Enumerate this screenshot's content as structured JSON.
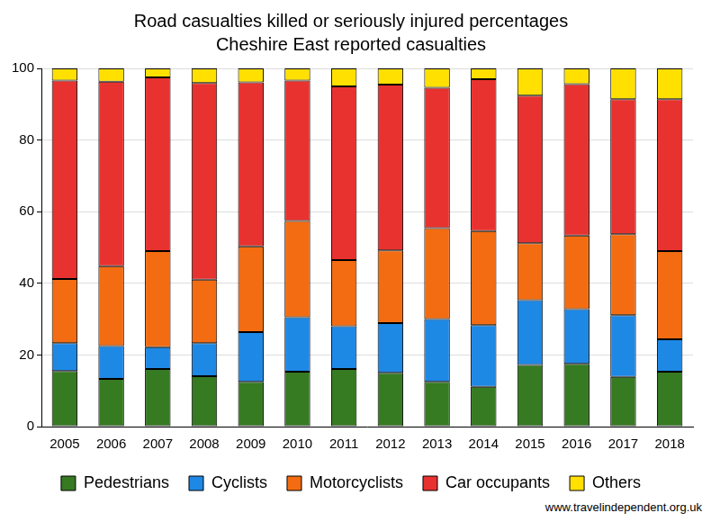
{
  "chart_data": {
    "type": "bar",
    "title": "Road casualties killed or seriously injured percentages",
    "subtitle": "Cheshire East reported casualties",
    "source": "www.travelindependent.org.uk",
    "categories": [
      "2005",
      "2006",
      "2007",
      "2008",
      "2009",
      "2010",
      "2011",
      "2012",
      "2013",
      "2014",
      "2015",
      "2016",
      "2017",
      "2018"
    ],
    "series": [
      {
        "name": "Pedestrians",
        "color": "#367a22",
        "values": [
          15.5,
          13.3,
          16.1,
          14.1,
          12.5,
          15.3,
          16.1,
          15.0,
          12.5,
          11.1,
          17.2,
          17.5,
          13.9,
          15.3
        ]
      },
      {
        "name": "Cyclists",
        "color": "#1e88e5",
        "values": [
          7.8,
          9.2,
          6.1,
          9.2,
          13.9,
          15.2,
          11.9,
          13.9,
          17.5,
          17.2,
          18.1,
          15.3,
          17.2,
          9.1
        ]
      },
      {
        "name": "Motorcyclists",
        "color": "#f36c11",
        "values": [
          17.9,
          22.3,
          26.8,
          17.7,
          23.9,
          26.9,
          18.5,
          20.3,
          25.4,
          26.3,
          15.9,
          20.5,
          22.6,
          24.6
        ]
      },
      {
        "name": "Car occupants",
        "color": "#e8322f",
        "values": [
          55.4,
          51.5,
          48.5,
          54.9,
          45.8,
          39.2,
          48.5,
          46.3,
          39.2,
          42.4,
          41.2,
          42.3,
          37.7,
          42.4
        ]
      },
      {
        "name": "Others",
        "color": "#ffe000",
        "values": [
          3.4,
          3.7,
          2.5,
          4.1,
          3.9,
          3.4,
          5.0,
          4.5,
          5.4,
          3.0,
          7.6,
          4.4,
          8.6,
          8.6
        ]
      }
    ],
    "ylim": [
      0,
      100
    ],
    "yticks": [
      0,
      20,
      40,
      60,
      80,
      100
    ],
    "stacked": true,
    "grid": true,
    "legend": "bottom"
  }
}
